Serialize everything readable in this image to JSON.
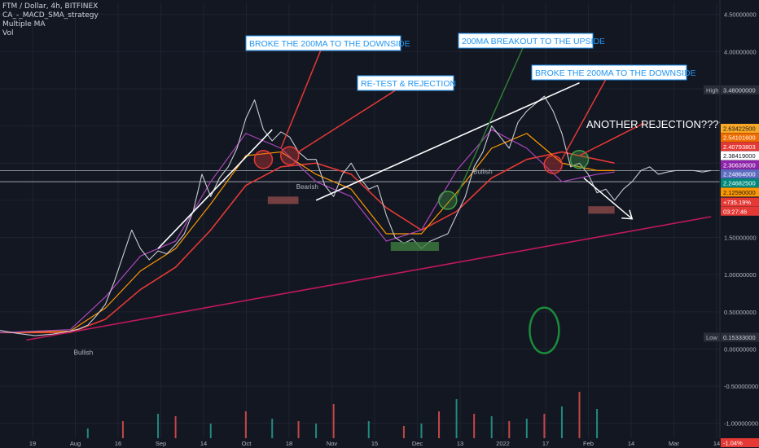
{
  "legend": {
    "symbol": "FTM / Dollar, 4h, BITFINEX",
    "studies": [
      "CA_-_MACD_SMA_strategy",
      "Multiple MA",
      "Vol"
    ]
  },
  "colors": {
    "background": "#131722",
    "price_up": "#c8cbd2",
    "ma_200": "#e53935",
    "ma_100": "#ff9800",
    "ma_50": "#ab47bc",
    "ma_fast": "#f6e05e",
    "trendline_support": "#c2185b",
    "trendline_white": "#ffffff",
    "annotation_text": "#2196f3",
    "vol_up": "#26a69a",
    "vol_down": "#ef5350"
  },
  "chart_data": {
    "type": "line",
    "title": "FTM / Dollar, 4h, BITFINEX",
    "x_ticks": [
      "19",
      "Aug",
      "16",
      "Sep",
      "14",
      "Oct",
      "18",
      "Nov",
      "15",
      "Dec",
      "13",
      "2022",
      "17",
      "Feb",
      "14",
      "Mar",
      "14"
    ],
    "y_ticks": [
      "4.50000000",
      "4.00000000",
      "3.50000000",
      "3.00000000",
      "2.50000000",
      "2.00000000",
      "1.50000000",
      "1.00000000",
      "0.50000000",
      "0.00000000",
      "-0.50000000",
      "-1.00000000"
    ],
    "ylim": [
      -1.2,
      4.65
    ],
    "price_series": {
      "name": "FTM / Dollar",
      "x_index": [
        0,
        2,
        4,
        6,
        8,
        9,
        10,
        11,
        12,
        13,
        14,
        15,
        16,
        17,
        18,
        19,
        20,
        21,
        22,
        23,
        24,
        25,
        26,
        27,
        28,
        29,
        30,
        31,
        32,
        33,
        34,
        35,
        36,
        37,
        38,
        39,
        40,
        41,
        42,
        43,
        44,
        45,
        46,
        47,
        48,
        49,
        50,
        51,
        52,
        53,
        54,
        55,
        56,
        57,
        58,
        59,
        60,
        61,
        62,
        63,
        64,
        65,
        66,
        67,
        68,
        69,
        70,
        71,
        72,
        73,
        74,
        75,
        76,
        77,
        78,
        79,
        80,
        81
      ],
      "values": [
        0.25,
        0.21,
        0.18,
        0.2,
        0.24,
        0.27,
        0.32,
        0.45,
        0.6,
        0.9,
        1.25,
        1.6,
        1.35,
        1.2,
        1.32,
        1.28,
        1.4,
        1.55,
        1.85,
        2.35,
        2.05,
        2.3,
        2.45,
        2.7,
        3.1,
        3.35,
        2.95,
        2.8,
        2.92,
        2.85,
        2.65,
        2.55,
        2.55,
        2.2,
        2.05,
        2.35,
        2.5,
        2.3,
        2.15,
        2.2,
        1.8,
        1.5,
        1.42,
        1.48,
        1.35,
        1.45,
        1.5,
        1.55,
        1.8,
        2.05,
        2.45,
        2.65,
        3.0,
        2.85,
        2.7,
        3.05,
        3.2,
        3.3,
        3.4,
        3.2,
        2.9,
        2.45,
        2.5,
        2.35,
        2.1,
        2.15,
        2.0,
        2.15,
        2.25,
        2.4,
        2.45,
        2.35,
        2.38,
        2.4,
        2.4,
        2.4,
        2.38,
        2.4
      ]
    },
    "ma_200": {
      "name": "MA 200",
      "x_index": [
        0,
        8,
        12,
        16,
        20,
        24,
        28,
        32,
        36,
        40,
        44,
        48,
        52,
        56,
        60,
        64,
        68,
        70
      ],
      "values": [
        0.22,
        0.22,
        0.4,
        0.8,
        1.1,
        1.6,
        2.2,
        2.45,
        2.5,
        2.35,
        1.9,
        1.6,
        1.85,
        2.3,
        2.55,
        2.65,
        2.55,
        2.5
      ]
    },
    "ma_100": {
      "name": "MA 100",
      "x_index": [
        0,
        8,
        12,
        16,
        20,
        24,
        28,
        32,
        36,
        40,
        44,
        48,
        52,
        56,
        60,
        64,
        68,
        70
      ],
      "values": [
        0.22,
        0.24,
        0.55,
        1.05,
        1.35,
        1.95,
        2.6,
        2.65,
        2.35,
        2.15,
        1.55,
        1.55,
        2.1,
        2.7,
        2.9,
        2.5,
        2.4,
        2.4
      ]
    },
    "ma_50": {
      "name": "MA 50",
      "x_index": [
        0,
        8,
        12,
        16,
        20,
        24,
        28,
        32,
        36,
        40,
        44,
        48,
        52,
        56,
        60,
        64,
        68,
        70
      ],
      "values": [
        0.22,
        0.26,
        0.7,
        1.25,
        1.45,
        2.25,
        2.9,
        2.7,
        2.25,
        2.05,
        1.45,
        1.6,
        2.4,
        2.95,
        2.7,
        2.25,
        2.35,
        2.38
      ]
    },
    "trendlines": [
      {
        "name": "support",
        "from": [
          3,
          0.12
        ],
        "to": [
          81,
          1.78
        ]
      },
      {
        "name": "rising",
        "from": [
          18,
          1.35
        ],
        "to": [
          31,
          2.95
        ]
      },
      {
        "name": "resistance",
        "from": [
          36,
          2.0
        ],
        "to": [
          66,
          3.58
        ]
      }
    ],
    "annotations": [
      "BROKE THE 200MA TO THE  DOWNSIDE",
      "RE-TEST & REJECTION",
      "200MA BREAKOUT TO THE UPSIDE",
      "BROKE THE 200MA TO THE  DOWNSIDE",
      "ANOTHER REJECTION????"
    ],
    "markers": [
      "Bullish",
      "Bearish",
      "Bullish"
    ],
    "price_scale_labels": {
      "high": {
        "label": "High",
        "value": "3.48000000"
      },
      "low": {
        "label": "Low",
        "value": "0.15333000"
      },
      "levels": [
        "2.63422500",
        "2.54101600",
        "2.40793803",
        "2.38419000",
        "2.30639000",
        "2.24864000",
        "2.24682500",
        "2.12590000"
      ],
      "change": "+735.19%",
      "countdown": "03:27:46",
      "bottom": "-1.04%"
    },
    "volume": {
      "name": "Vol",
      "x_index": [
        10,
        14,
        18,
        20,
        24,
        28,
        31,
        34,
        36,
        38,
        42,
        46,
        48,
        50,
        52,
        54,
        56,
        58,
        60,
        62,
        64,
        66,
        68
      ],
      "values": [
        0.2,
        0.35,
        0.5,
        0.45,
        0.3,
        0.55,
        0.4,
        0.35,
        0.3,
        0.7,
        0.35,
        0.25,
        0.3,
        0.55,
        0.8,
        0.5,
        0.45,
        0.35,
        0.4,
        0.5,
        0.65,
        0.95,
        0.6
      ]
    }
  }
}
